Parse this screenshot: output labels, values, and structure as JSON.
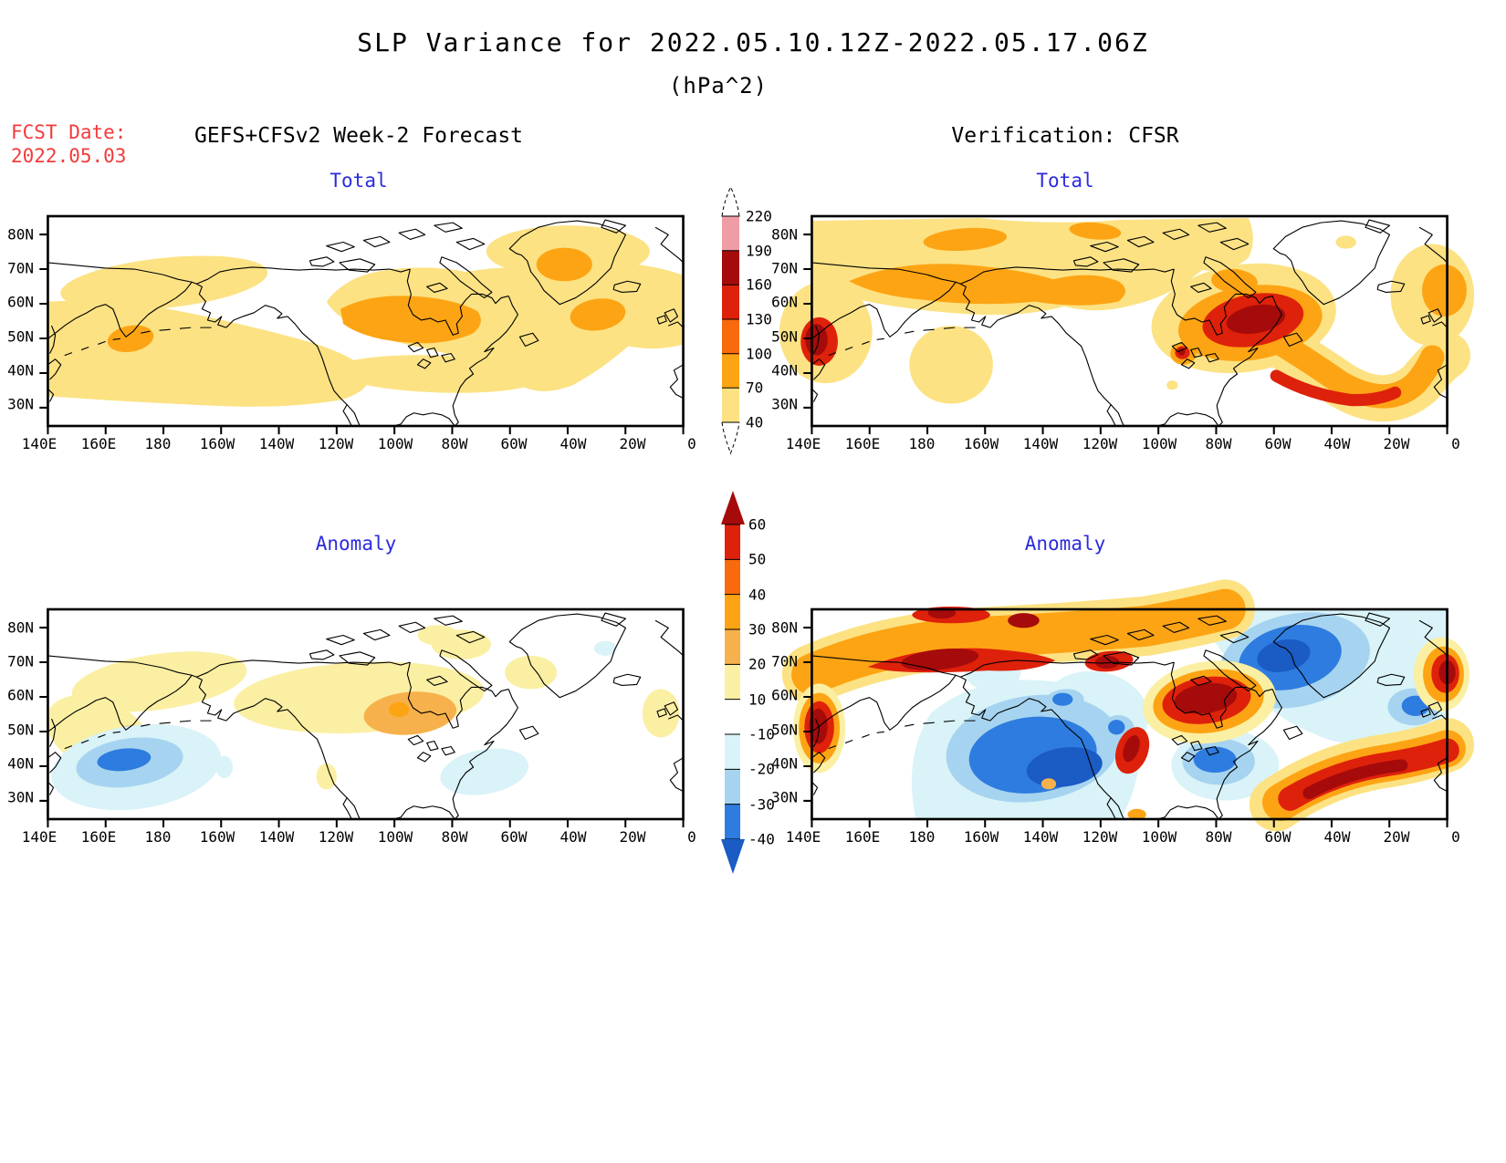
{
  "title": "SLP Variance for 2022.05.10.12Z-2022.05.17.06Z",
  "subtitle": "(hPa^2)",
  "fcst": {
    "label": "FCST Date:",
    "value": "2022.05.03"
  },
  "headers": {
    "left": "GEFS+CFSv2 Week-2 Forecast",
    "right": "Verification: CFSR"
  },
  "panel_titles": {
    "forecast_total": "Total",
    "verification_total": "Total",
    "forecast_anomaly": "Anomaly",
    "verification_anomaly": "Anomaly"
  },
  "axes": {
    "x_ticks": [
      "140E",
      "160E",
      "180",
      "160W",
      "140W",
      "120W",
      "100W",
      "80W",
      "60W",
      "40W",
      "20W",
      "0"
    ],
    "y_ticks": [
      "80N",
      "70N",
      "60N",
      "50N",
      "40N",
      "30N"
    ]
  },
  "colorbars": {
    "variance": {
      "labels": [
        "220",
        "190",
        "160",
        "130",
        "100",
        "70",
        "40"
      ],
      "colors": {
        "gt220": "#F8DBE1",
        "c190_220": "#EE9DA5",
        "c160_190": "#A50B0A",
        "c130_160": "#DE210B",
        "c100_130": "#F96A0D",
        "c70_100": "#FDA414",
        "c40_70": "#FCE283"
      }
    },
    "anomaly": {
      "labels": [
        "60",
        "50",
        "40",
        "30",
        "20",
        "10",
        "-10",
        "-20",
        "-30",
        "-40"
      ],
      "colors": {
        "gt60": "#A50B0A",
        "c50_60": "#DE210B",
        "c40_50": "#F96A0D",
        "c30_40": "#FDA414",
        "c20_30": "#F7B14C",
        "c10_20": "#FBEFA3",
        "cm10_10": "#FFFFFF",
        "cm20_m10": "#D9F3F8",
        "cm30_m20": "#A6D4F0",
        "cm40_m30": "#2E7CDF",
        "ltm40": "#1A5BC4"
      }
    }
  },
  "text_colors": {
    "accent_red": "#F23B3B",
    "accent_blue": "#2B2BDD"
  },
  "palette": {
    "pale_yellow": "#FCE283",
    "anomaly_pale_yellow": "#FBEFA3",
    "amber": "#F7B14C",
    "orange": "#FDA414",
    "vivid_orange": "#F96A0D",
    "red": "#DE210B",
    "dark_red": "#A50B0A",
    "pink": "#EE9DA5",
    "pale_pink": "#F8DBE1",
    "pale_cyan": "#D9F3F8",
    "light_blue": "#A6D4F0",
    "blue": "#2E7CDF",
    "dark_blue": "#1A5BC4"
  },
  "chart_data": {
    "type": "heatmap",
    "title": "SLP Variance for 2022.05.10.12Z-2022.05.17.06Z",
    "units": "hPa^2",
    "forecast_initial_date": "2022.05.03",
    "valid_period": "2022.05.10.12Z-2022.05.17.06Z",
    "layout": "2x2 panels; left column GEFS+CFSv2 Week-2 Forecast, right column Verification: CFSR; rows Total and Anomaly; shared variance colorbar for Total row and anomaly colorbar for Anomaly row",
    "columns": [
      "GEFS+CFSv2 Week-2 Forecast",
      "Verification: CFSR"
    ],
    "rows": [
      "Total",
      "Anomaly"
    ],
    "x_axis": {
      "ticks": [
        "140E",
        "160E",
        "180",
        "160W",
        "140W",
        "120W",
        "100W",
        "80W",
        "60W",
        "40W",
        "20W",
        "0"
      ],
      "spacing_deg": 20
    },
    "y_axis": {
      "ticks": [
        "80N",
        "70N",
        "60N",
        "50N",
        "40N",
        "30N"
      ],
      "approx_range": [
        "25N",
        "85N"
      ]
    },
    "total_scale_levels": [
      40,
      70,
      100,
      130,
      160,
      190,
      220
    ],
    "anomaly_scale_levels": [
      -40,
      -30,
      -20,
      -10,
      10,
      20,
      30,
      40,
      50,
      60
    ],
    "panels": [
      {
        "name": "forecast_total",
        "features": [
          {
            "region": "Sea of Okhotsk / south of Kamchatka",
            "value_range": "70-100"
          },
          {
            "region": "central Canada and western Hudson Bay",
            "value_range": "70-100"
          },
          {
            "region": "northern Greenland",
            "value_range": "70-100"
          },
          {
            "region": "North Atlantic southeast of Greenland",
            "value_range": "70-100"
          },
          {
            "region": "broad North Pacific, Canada and North Atlantic band",
            "value_range": "40-70"
          }
        ]
      },
      {
        "name": "verification_total",
        "features": [
          {
            "region": "near Japan at left edge ~50N",
            "value_range": "160-190"
          },
          {
            "region": "Quebec / east of Hudson Bay",
            "value_range": "160-190"
          },
          {
            "region": "Siberian Arctic coast band ~70N",
            "value_range": "70-100"
          },
          {
            "region": "North Atlantic storm-track arc",
            "value_range": "100-130"
          },
          {
            "region": "northeast Atlantic at right edge",
            "value_range": "70-100"
          }
        ]
      },
      {
        "name": "forecast_anomaly",
        "features": [
          {
            "region": "central North Pacific ~180E/42N",
            "value_range": "-30 to -40"
          },
          {
            "region": "Hudson Bay / central Canada",
            "value_range": "+20 to +40"
          },
          {
            "region": "northeast Asia ~55N",
            "value_range": "+20 to +30"
          },
          {
            "region": "west Atlantic off the US east coast",
            "value_range": "-10 to -20"
          },
          {
            "region": "Siberia and Canada",
            "value_range": "+10 to +20"
          }
        ]
      },
      {
        "name": "verification_anomaly",
        "features": [
          {
            "region": "Siberian Arctic coast band",
            "value_range": "+40 to >+60"
          },
          {
            "region": "near Japan at left edge ~50N",
            "value_range": ">+60"
          },
          {
            "region": "North Pacific basin",
            "value_range": "-30 to <-40"
          },
          {
            "region": "Quebec / Hudson Bay",
            "value_range": ">+60"
          },
          {
            "region": "Greenland and high-latitude North Atlantic",
            "value_range": "-30 to <-40"
          },
          {
            "region": "central North Atlantic arc ~45N",
            "value_range": ">+60"
          },
          {
            "region": "Great Lakes region",
            "value_range": "-30 to -40"
          },
          {
            "region": "northeast Atlantic near prime meridian ~65N",
            "value_range": "+50 to +60"
          }
        ]
      }
    ]
  }
}
